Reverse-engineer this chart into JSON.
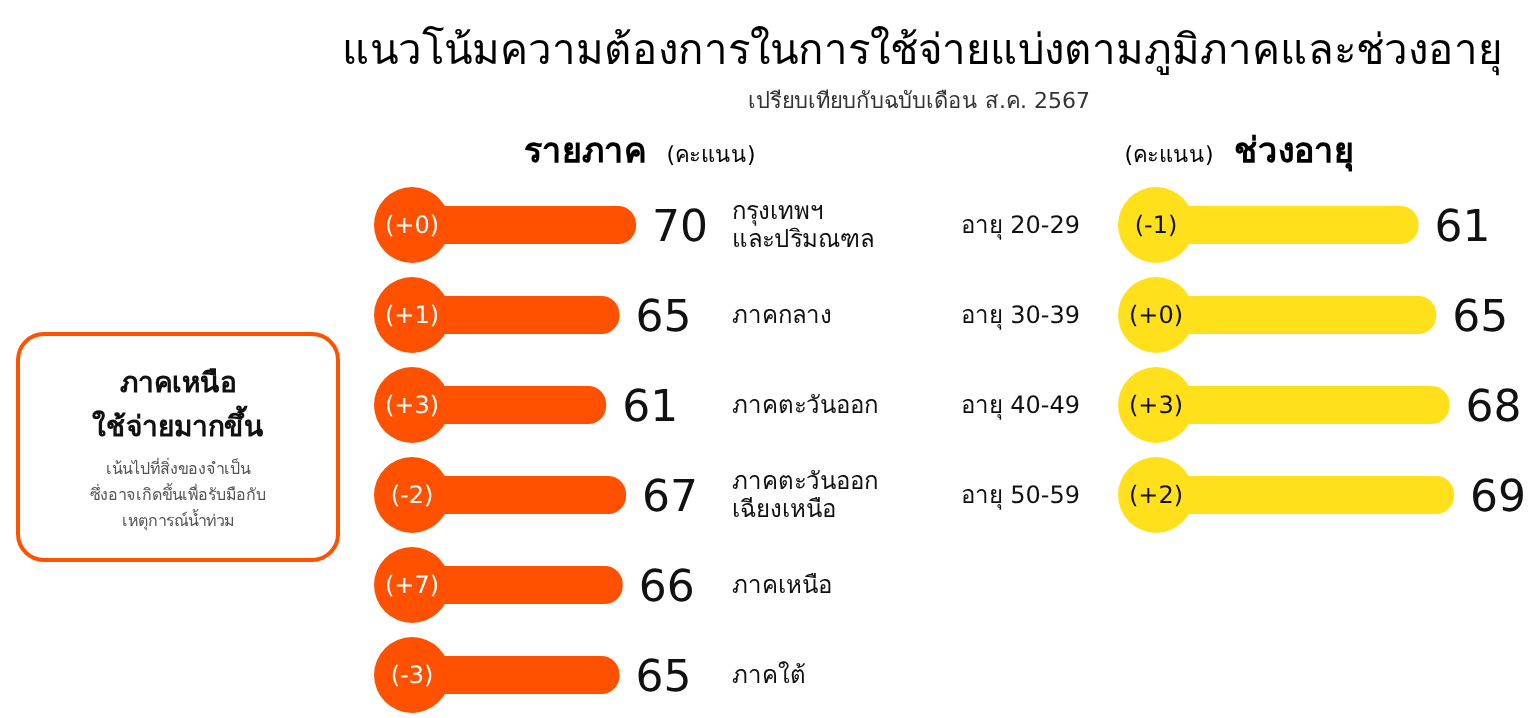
{
  "chart_data": [
    {
      "type": "bar",
      "orientation": "horizontal",
      "title": "แนวโน้มความต้องการในการใช้จ่ายแบ่งตามภูมิภาคและช่วงอายุ",
      "subtitle": "เปรียบเทียบกับฉบับเดือน ส.ค. 2567",
      "ylabel": "รายภาค",
      "xlabel": "(คะแนน)",
      "categories": [
        "กรุงเทพฯ\nและปริมณฑล",
        "ภาคกลาง",
        "ภาคตะวันออก",
        "ภาคตะวันออก\nเฉียงเหนือ",
        "ภาคเหนือ",
        "ภาคใต้"
      ],
      "values": [
        70,
        65,
        61,
        67,
        66,
        65
      ],
      "color": "#ff5100",
      "data_labels": true,
      "annotations": [
        "ภาคเหนือ\nใช้จ่ายมากขึ้น",
        "เน้นไปที่สิ่งของจำเป็น\nซึ่งอาจเกิดขึ้นเพื่อรับมือกับ\nเหตุการณ์น้ำท่วม",
        {
          "text": "(+0)",
          "y": "กรุงเทพฯ\nและปริมณฑล"
        },
        {
          "text": "(+1)",
          "y": "ภาคกลาง"
        },
        {
          "text": "(+3)",
          "y": "ภาคตะวันออก"
        },
        {
          "text": "(-2)",
          "y": "ภาคตะวันออก\nเฉียงเหนือ"
        },
        {
          "text": "(+7)",
          "y": "ภาคเหนือ"
        },
        {
          "text": "(-3)",
          "y": "ภาคใต้"
        }
      ]
    },
    {
      "type": "bar",
      "orientation": "horizontal",
      "ylabel": "ช่วงอายุ",
      "xlabel": "(คะแนน)",
      "categories": [
        "อายุ 20-29",
        "อายุ 30-39",
        "อายุ 40-49",
        "อายุ 50-59"
      ],
      "values": [
        61,
        65,
        68,
        69
      ],
      "color": "#ffe01b",
      "data_labels": true,
      "annotations": [
        {
          "text": "(-1)",
          "y": "อายุ 20-29"
        },
        {
          "text": "(+0)",
          "y": "อายุ 30-39"
        },
        {
          "text": "(+3)",
          "y": "อายุ 40-49"
        },
        {
          "text": "(+2)",
          "y": "อายุ 50-59"
        }
      ]
    }
  ]
}
